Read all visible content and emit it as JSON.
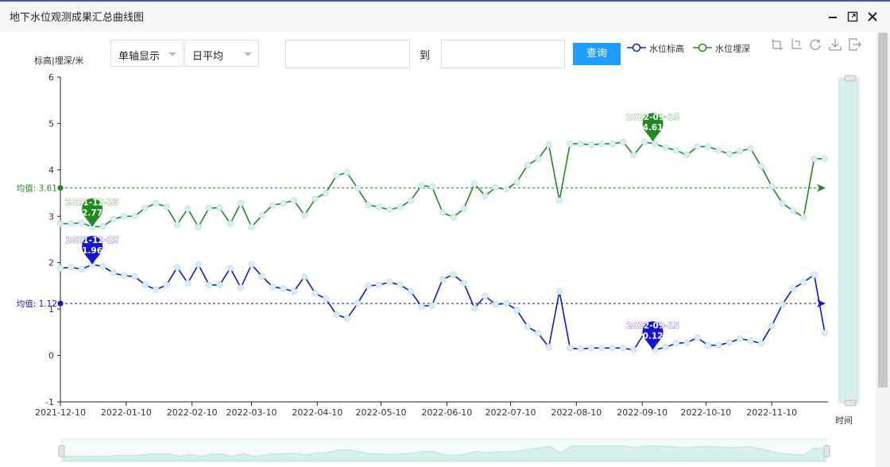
{
  "window": {
    "title": "地下水位观测成果汇总曲线图"
  },
  "controls": {
    "axis_mode": "单轴显示",
    "aggregation": "日平均",
    "start_date": "",
    "end_date": "",
    "to_label": "到",
    "query_button": "查询"
  },
  "colors": {
    "blue": "#1515d6",
    "green": "#1f8a1f",
    "point_fill": "#d8f1f4",
    "zoom_fill": "#d7f1ec"
  },
  "chart_data": {
    "type": "line",
    "ylabel": "标高|埋深/米",
    "xlabel": "时间",
    "ylim": [
      -1,
      6
    ],
    "yticks": [
      "-1",
      "0",
      "1",
      "2",
      "3",
      "4",
      "5",
      "6"
    ],
    "xticks": [
      "2021-12-10",
      "2022-01-10",
      "2022-02-10",
      "2022-03-10",
      "2022-04-10",
      "2022-05-10",
      "2022-06-10",
      "2022-07-10",
      "2022-08-10",
      "2022-09-10",
      "2022-10-10",
      "2022-11-10"
    ],
    "grid": false,
    "legend_position": "top-right",
    "series": [
      {
        "name": "水位标高",
        "color": "#1515d6",
        "mean_label": "均值: 1.12",
        "mean": 1.12,
        "max_label": "2021-12-25\n1.96",
        "max": {
          "x": "2021-12-25",
          "y": 1.96,
          "label": "1.96",
          "date_label": "2021-12-25"
        },
        "min": {
          "x": "2022-09-15",
          "y": 0.12,
          "label": "0.12",
          "date_label": "2022-09-15"
        },
        "points": [
          [
            "2021-12-10",
            1.88
          ],
          [
            "2021-12-15",
            1.9
          ],
          [
            "2021-12-20",
            1.86
          ],
          [
            "2021-12-25",
            1.96
          ],
          [
            "2021-12-30",
            1.92
          ],
          [
            "2022-01-04",
            1.78
          ],
          [
            "2022-01-09",
            1.72
          ],
          [
            "2022-01-14",
            1.7
          ],
          [
            "2022-01-19",
            1.52
          ],
          [
            "2022-01-24",
            1.42
          ],
          [
            "2022-01-29",
            1.52
          ],
          [
            "2022-02-03",
            1.9
          ],
          [
            "2022-02-08",
            1.56
          ],
          [
            "2022-02-13",
            1.96
          ],
          [
            "2022-02-18",
            1.52
          ],
          [
            "2022-02-23",
            1.52
          ],
          [
            "2022-02-28",
            1.88
          ],
          [
            "2022-03-05",
            1.46
          ],
          [
            "2022-03-10",
            1.96
          ],
          [
            "2022-03-15",
            1.7
          ],
          [
            "2022-03-20",
            1.48
          ],
          [
            "2022-03-25",
            1.44
          ],
          [
            "2022-03-30",
            1.38
          ],
          [
            "2022-04-04",
            1.7
          ],
          [
            "2022-04-09",
            1.34
          ],
          [
            "2022-04-14",
            1.22
          ],
          [
            "2022-04-19",
            0.88
          ],
          [
            "2022-04-24",
            0.8
          ],
          [
            "2022-04-29",
            1.12
          ],
          [
            "2022-05-04",
            1.5
          ],
          [
            "2022-05-09",
            1.52
          ],
          [
            "2022-05-14",
            1.58
          ],
          [
            "2022-05-19",
            1.52
          ],
          [
            "2022-05-24",
            1.38
          ],
          [
            "2022-05-29",
            1.06
          ],
          [
            "2022-06-03",
            1.08
          ],
          [
            "2022-06-08",
            1.64
          ],
          [
            "2022-06-13",
            1.74
          ],
          [
            "2022-06-18",
            1.56
          ],
          [
            "2022-06-23",
            1.02
          ],
          [
            "2022-06-28",
            1.28
          ],
          [
            "2022-07-03",
            1.1
          ],
          [
            "2022-07-08",
            1.12
          ],
          [
            "2022-07-13",
            0.98
          ],
          [
            "2022-07-18",
            0.62
          ],
          [
            "2022-07-23",
            0.48
          ],
          [
            "2022-07-28",
            0.18
          ],
          [
            "2022-08-02",
            1.38
          ],
          [
            "2022-08-07",
            0.16
          ],
          [
            "2022-08-12",
            0.14
          ],
          [
            "2022-08-17",
            0.16
          ],
          [
            "2022-08-22",
            0.16
          ],
          [
            "2022-08-27",
            0.16
          ],
          [
            "2022-09-01",
            0.16
          ],
          [
            "2022-09-06",
            0.12
          ],
          [
            "2022-09-11",
            0.48
          ],
          [
            "2022-09-16",
            0.12
          ],
          [
            "2022-09-21",
            0.18
          ],
          [
            "2022-09-26",
            0.26
          ],
          [
            "2022-10-01",
            0.28
          ],
          [
            "2022-10-06",
            0.38
          ],
          [
            "2022-10-11",
            0.22
          ],
          [
            "2022-10-16",
            0.22
          ],
          [
            "2022-10-21",
            0.28
          ],
          [
            "2022-10-26",
            0.36
          ],
          [
            "2022-10-31",
            0.32
          ],
          [
            "2022-11-05",
            0.26
          ],
          [
            "2022-11-10",
            0.64
          ],
          [
            "2022-11-15",
            1.1
          ],
          [
            "2022-11-20",
            1.44
          ],
          [
            "2022-11-25",
            1.58
          ],
          [
            "2022-11-30",
            1.74
          ],
          [
            "2022-12-05",
            0.48
          ]
        ]
      },
      {
        "name": "水位埋深",
        "color": "#1f8a1f",
        "mean_label": "均值: 3.61",
        "mean": 3.61,
        "max": {
          "x": "2022-09-15",
          "y": 4.61,
          "label": "4.61",
          "date_label": "2022-09-15"
        },
        "min": {
          "x": "2021-12-25",
          "y": 2.77,
          "label": "2.77",
          "date_label": "2021-12-25"
        },
        "points": [
          [
            "2021-12-10",
            2.84
          ],
          [
            "2021-12-15",
            2.84
          ],
          [
            "2021-12-20",
            2.86
          ],
          [
            "2021-12-25",
            2.77
          ],
          [
            "2021-12-30",
            2.78
          ],
          [
            "2022-01-04",
            2.94
          ],
          [
            "2022-01-09",
            3.0
          ],
          [
            "2022-01-14",
            3.0
          ],
          [
            "2022-01-19",
            3.18
          ],
          [
            "2022-01-24",
            3.28
          ],
          [
            "2022-01-29",
            3.2
          ],
          [
            "2022-02-03",
            2.82
          ],
          [
            "2022-02-08",
            3.16
          ],
          [
            "2022-02-13",
            2.77
          ],
          [
            "2022-02-18",
            3.18
          ],
          [
            "2022-02-23",
            3.18
          ],
          [
            "2022-02-28",
            2.84
          ],
          [
            "2022-03-05",
            3.28
          ],
          [
            "2022-03-10",
            2.77
          ],
          [
            "2022-03-15",
            3.02
          ],
          [
            "2022-03-20",
            3.24
          ],
          [
            "2022-03-25",
            3.28
          ],
          [
            "2022-03-30",
            3.34
          ],
          [
            "2022-04-04",
            3.02
          ],
          [
            "2022-04-09",
            3.38
          ],
          [
            "2022-04-14",
            3.5
          ],
          [
            "2022-04-19",
            3.88
          ],
          [
            "2022-04-24",
            3.94
          ],
          [
            "2022-04-29",
            3.6
          ],
          [
            "2022-05-04",
            3.24
          ],
          [
            "2022-05-09",
            3.2
          ],
          [
            "2022-05-14",
            3.14
          ],
          [
            "2022-05-19",
            3.2
          ],
          [
            "2022-05-24",
            3.34
          ],
          [
            "2022-05-29",
            3.66
          ],
          [
            "2022-06-03",
            3.64
          ],
          [
            "2022-06-08",
            3.08
          ],
          [
            "2022-06-13",
            2.98
          ],
          [
            "2022-06-18",
            3.16
          ],
          [
            "2022-06-23",
            3.7
          ],
          [
            "2022-06-28",
            3.44
          ],
          [
            "2022-07-03",
            3.62
          ],
          [
            "2022-07-08",
            3.58
          ],
          [
            "2022-07-13",
            3.74
          ],
          [
            "2022-07-18",
            4.1
          ],
          [
            "2022-07-23",
            4.24
          ],
          [
            "2022-07-28",
            4.54
          ],
          [
            "2022-08-02",
            3.34
          ],
          [
            "2022-08-07",
            4.56
          ],
          [
            "2022-08-12",
            4.56
          ],
          [
            "2022-08-17",
            4.54
          ],
          [
            "2022-08-22",
            4.56
          ],
          [
            "2022-08-27",
            4.56
          ],
          [
            "2022-09-01",
            4.6
          ],
          [
            "2022-09-06",
            4.32
          ],
          [
            "2022-09-11",
            4.6
          ],
          [
            "2022-09-16",
            4.56
          ],
          [
            "2022-09-21",
            4.48
          ],
          [
            "2022-09-26",
            4.42
          ],
          [
            "2022-10-01",
            4.32
          ],
          [
            "2022-10-06",
            4.5
          ],
          [
            "2022-10-11",
            4.5
          ],
          [
            "2022-10-16",
            4.42
          ],
          [
            "2022-10-21",
            4.34
          ],
          [
            "2022-10-26",
            4.4
          ],
          [
            "2022-10-31",
            4.46
          ],
          [
            "2022-11-05",
            4.08
          ],
          [
            "2022-11-10",
            3.64
          ],
          [
            "2022-11-15",
            3.28
          ],
          [
            "2022-11-20",
            3.12
          ],
          [
            "2022-11-25",
            2.98
          ],
          [
            "2022-11-30",
            4.24
          ],
          [
            "2022-12-05",
            4.24
          ]
        ]
      }
    ]
  }
}
